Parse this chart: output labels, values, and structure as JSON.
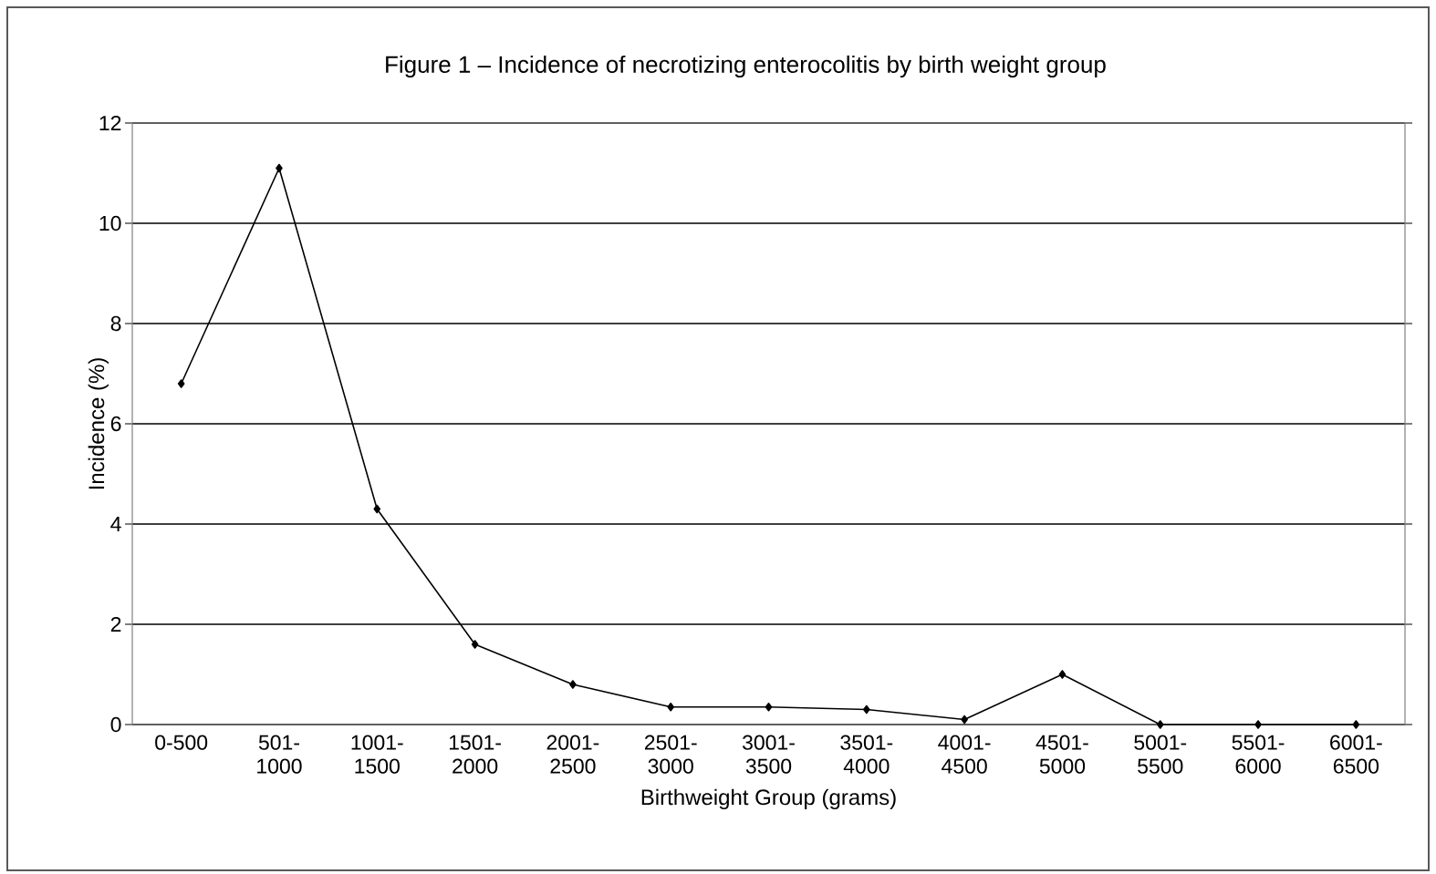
{
  "chart_data": {
    "type": "line",
    "title": "Figure 1 – Incidence of necrotizing enterocolitis by birth weight group",
    "xlabel": "Birthweight Group (grams)",
    "ylabel": "Incidence (%)",
    "categories": [
      "0-500",
      "501-1000",
      "1001-1500",
      "1501-2000",
      "2001-2500",
      "2501-3000",
      "3001-3500",
      "3501-4000",
      "4001-4500",
      "4501-5000",
      "5001-5500",
      "5501-6000",
      "6001-6500"
    ],
    "values": [
      6.8,
      11.1,
      4.3,
      1.6,
      0.8,
      0.35,
      0.35,
      0.3,
      0.1,
      1.0,
      0,
      0,
      0
    ],
    "color": "#000000",
    "ylim": [
      0,
      12
    ],
    "yticks": [
      0,
      2,
      4,
      6,
      8,
      10,
      12
    ],
    "grid": "y",
    "marker": "diamond",
    "line_style": "solid"
  }
}
